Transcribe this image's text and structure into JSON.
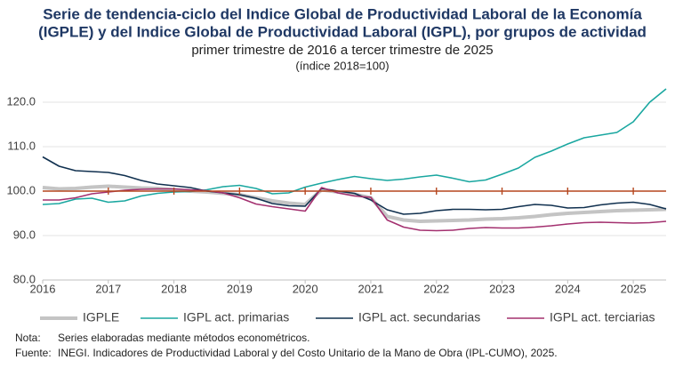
{
  "chart_data": {
    "type": "line",
    "title_lines": [
      "Serie de tendencia-ciclo del Indice Global de Productividad Laboral de la Economía",
      "(IGPLE) y del Indice Global de Productividad Laboral (IGPL), por grupos de actividad"
    ],
    "subtitle": "primer trimestre de 2016 a tercer trimestre de 2025",
    "unit_note": "(índice 2018=100)",
    "x": [
      2016,
      2016.25,
      2016.5,
      2016.75,
      2017,
      2017.25,
      2017.5,
      2017.75,
      2018,
      2018.25,
      2018.5,
      2018.75,
      2019,
      2019.25,
      2019.5,
      2019.75,
      2020,
      2020.25,
      2020.5,
      2020.75,
      2021,
      2021.25,
      2021.5,
      2021.75,
      2022,
      2022.25,
      2022.5,
      2022.75,
      2023,
      2023.25,
      2023.5,
      2023.75,
      2024,
      2024.25,
      2024.5,
      2024.75,
      2025,
      2025.25,
      2025.5
    ],
    "series": [
      {
        "name": "IGPLE",
        "color": "#c4c4c4",
        "width": 4,
        "values": [
          100.8,
          100.5,
          100.6,
          100.9,
          101.1,
          100.9,
          100.7,
          100.6,
          100.3,
          100.0,
          99.8,
          99.5,
          99.2,
          98.5,
          97.8,
          97.3,
          97.0,
          100.3,
          99.8,
          99.3,
          98.5,
          94.3,
          93.5,
          93.2,
          93.3,
          93.4,
          93.5,
          93.7,
          93.8,
          94.0,
          94.3,
          94.7,
          95.0,
          95.2,
          95.4,
          95.6,
          95.7,
          95.8,
          95.9
        ]
      },
      {
        "name": "IGPL act. primarias",
        "color": "#1aa7a0",
        "width": 1.6,
        "values": [
          97.0,
          97.2,
          98.2,
          98.4,
          97.5,
          97.8,
          98.9,
          99.5,
          99.8,
          99.9,
          100.3,
          101.0,
          101.3,
          100.6,
          99.4,
          99.6,
          100.9,
          101.8,
          102.6,
          103.3,
          102.8,
          102.4,
          102.7,
          103.2,
          103.6,
          102.9,
          102.1,
          102.5,
          103.8,
          105.2,
          107.6,
          109.0,
          110.6,
          112.0,
          112.6,
          113.2,
          115.6,
          120.0,
          123.0
        ]
      },
      {
        "name": "IGPL act. secundarias",
        "color": "#10304f",
        "width": 1.6,
        "values": [
          107.7,
          105.6,
          104.6,
          104.4,
          104.2,
          103.5,
          102.4,
          101.6,
          101.2,
          100.8,
          100.0,
          99.6,
          99.2,
          98.4,
          97.2,
          96.7,
          96.6,
          100.6,
          100.0,
          99.5,
          98.0,
          95.8,
          94.8,
          95.0,
          95.6,
          95.9,
          95.9,
          95.8,
          95.9,
          96.5,
          97.0,
          96.8,
          96.2,
          96.3,
          96.9,
          97.3,
          97.5,
          97.0,
          96.0
        ]
      },
      {
        "name": "IGPL act. terciarias",
        "color": "#a3306f",
        "width": 1.6,
        "values": [
          98.0,
          98.0,
          98.5,
          99.4,
          99.8,
          100.2,
          100.4,
          100.5,
          100.5,
          100.3,
          100.1,
          99.6,
          98.5,
          97.1,
          96.5,
          96.0,
          95.5,
          100.8,
          99.6,
          98.9,
          98.6,
          93.5,
          91.9,
          91.2,
          91.1,
          91.2,
          91.6,
          91.8,
          91.7,
          91.7,
          91.9,
          92.2,
          92.6,
          92.9,
          93.0,
          92.9,
          92.8,
          92.9,
          93.2
        ]
      }
    ],
    "xlim": [
      2016,
      2025.5
    ],
    "xticks": [
      2016,
      2017,
      2018,
      2019,
      2020,
      2021,
      2022,
      2023,
      2024,
      2025
    ],
    "ylim": [
      80,
      124
    ],
    "yticks": [
      {
        "value": 80,
        "label": "80.0"
      },
      {
        "value": 90,
        "label": "90.0"
      },
      {
        "value": 100,
        "label": "100.0"
      },
      {
        "value": 110,
        "label": "110.0"
      },
      {
        "value": 120,
        "label": "120.0"
      }
    ],
    "grid": true,
    "reference_line": {
      "value": 100,
      "color": "#b5471f"
    },
    "notes": [
      {
        "label": "Nota:",
        "text": "Series elaboradas mediante métodos econométricos."
      },
      {
        "label": "Fuente:",
        "text": "INEGI. Indicadores de Productividad Laboral y del Costo Unitario de la Mano de Obra (IPL-CUMO), 2025."
      }
    ]
  }
}
